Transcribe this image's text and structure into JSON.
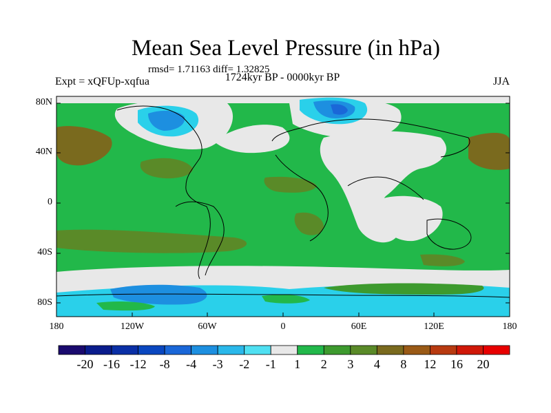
{
  "title": "Mean Sea Level Pressure (in hPa)",
  "stats": "rmsd= 1.71163 diff= 1.32825",
  "experiment": "Expt = xQFUp-xqfua",
  "period": "1724kyr BP - 0000kyr BP",
  "season": "JJA",
  "y_ticks": [
    "80N",
    "40N",
    "0",
    "40S",
    "80S"
  ],
  "x_ticks": [
    "180",
    "120W",
    "60W",
    "0",
    "60E",
    "120E",
    "180"
  ],
  "colorbar": {
    "labels": [
      "-20",
      "-16",
      "-12",
      "-8",
      "-4",
      "-3",
      "-2",
      "-1",
      "1",
      "2",
      "3",
      "4",
      "8",
      "12",
      "16",
      "20"
    ],
    "colors": [
      "#1a0a6e",
      "#0a1c8c",
      "#0a2fa6",
      "#0a47c0",
      "#1a67d8",
      "#1d8fe0",
      "#2ab8ea",
      "#4fe0f2",
      "#e8e8e8",
      "#22b84a",
      "#3d9a2e",
      "#5a8a28",
      "#7a6a1e",
      "#9a5a16",
      "#b83a10",
      "#d01808",
      "#e80000"
    ]
  },
  "colors": {
    "green": "#22b84a",
    "dark_green": "#3d9a2e",
    "olive": "#5a8a28",
    "brown": "#8a6a2a",
    "white": "#e8e8e8",
    "cyan": "#2ad0ea",
    "blue": "#1d8fe0",
    "deep_blue": "#1a67d8"
  }
}
